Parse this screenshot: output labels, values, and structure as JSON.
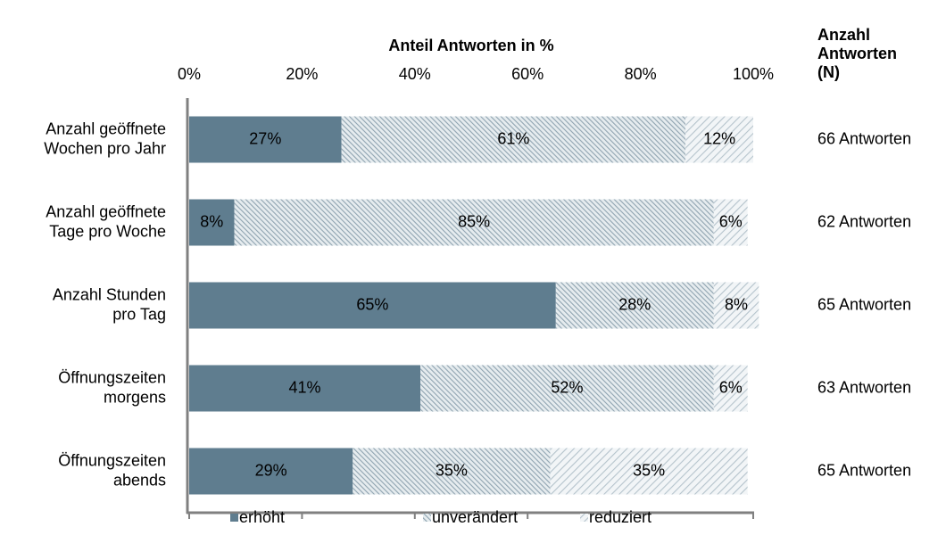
{
  "chart_data": {
    "type": "stacked_bar_horizontal",
    "xlabel": "Anteil Antworten in %",
    "categories": [
      "Anzahl geöffnete\nWochen pro Jahr",
      "Anzahl geöffnete\nTage pro Woche",
      "Anzahl Stunden\npro Tag",
      "Öffnungszeiten\nmorgens",
      "Öffnungszeiten\nabends"
    ],
    "series": [
      {
        "name": "erhöht",
        "color": "#5f7d8f",
        "values": [
          27,
          8,
          65,
          41,
          29
        ],
        "value_labels": [
          "27%",
          "8%",
          "65%",
          "41%",
          "29%"
        ]
      },
      {
        "name": "unverändert",
        "color": "#9fb2bf",
        "values": [
          61,
          85,
          28,
          52,
          35
        ],
        "value_labels": [
          "61%",
          "85%",
          "28%",
          "52%",
          "35%"
        ]
      },
      {
        "name": "reduziert",
        "color": "#c3cfd7",
        "values": [
          12,
          6,
          8,
          6,
          35
        ],
        "value_labels": [
          "12%",
          "6%",
          "8%",
          "6%",
          "35%"
        ]
      }
    ],
    "xlim": [
      0,
      100
    ],
    "xticks": [
      {
        "value": 0,
        "label": "0%"
      },
      {
        "value": 20,
        "label": "20%"
      },
      {
        "value": 40,
        "label": "40%"
      },
      {
        "value": 60,
        "label": "60%"
      },
      {
        "value": 80,
        "label": "80%"
      },
      {
        "value": 100,
        "label": "100%"
      }
    ],
    "n_header": "Anzahl\nAntworten\n(N)",
    "n_labels": [
      "66 Antworten",
      "62 Antworten",
      "65 Antworten",
      "63 Antworten",
      "65 Antworten"
    ],
    "legend": "bottom"
  }
}
